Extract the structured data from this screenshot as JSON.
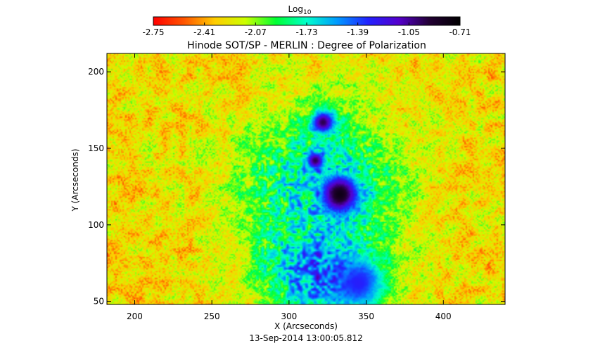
{
  "chart_data": {
    "type": "heatmap",
    "title": "Hinode SOT/SP - MERLIN : Degree of Polarization",
    "xlabel": "X (Arcseconds)",
    "ylabel": "Y (Arcseconds)",
    "timestamp": "13-Sep-2014 13:00:05.812",
    "xlim": [
      182,
      440
    ],
    "ylim": [
      48,
      212
    ],
    "x_ticks": [
      200,
      250,
      300,
      350,
      400
    ],
    "y_ticks": [
      50,
      100,
      150,
      200
    ],
    "colorbar": {
      "label": "Log",
      "label_subscript": "10",
      "range": [
        -2.75,
        -0.71
      ],
      "ticks": [
        "-2.75",
        "-2.41",
        "-2.07",
        "-1.73",
        "-1.39",
        "-1.05",
        "-0.71"
      ],
      "colormap": [
        "#ff0000",
        "#ff5500",
        "#ffcc00",
        "#ccff00",
        "#00ff33",
        "#00ffcc",
        "#0099ff",
        "#2222ff",
        "#5500cc",
        "#220033",
        "#000000"
      ]
    },
    "features": [
      {
        "name": "sunspot-main",
        "x": 333,
        "y": 120,
        "r": 18,
        "value": -0.8
      },
      {
        "name": "pore-north",
        "x": 322,
        "y": 167,
        "r": 10,
        "value": -0.95
      },
      {
        "name": "pore-middle",
        "x": 317,
        "y": 142,
        "r": 8,
        "value": -0.95
      },
      {
        "name": "plage-south",
        "x": 318,
        "y": 70,
        "r": 40,
        "value": -1.6
      },
      {
        "name": "plage-south-east",
        "x": 345,
        "y": 62,
        "r": 20,
        "value": -1.3
      },
      {
        "name": "plage-core",
        "x": 320,
        "y": 125,
        "r": 60,
        "value": -1.85
      }
    ]
  }
}
